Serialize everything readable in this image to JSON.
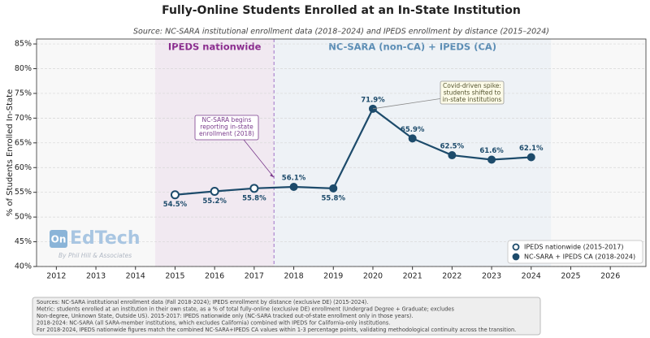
{
  "chart_data": {
    "type": "line",
    "title": "Fully-Online Students Enrolled at an In-State Institution",
    "subtitle": "Source: NC-SARA institutional enrollment data (2018–2024) and IPEDS enrollment by distance (2015–2024)",
    "y_label": "% of Students Enrolled In-State",
    "xlim": [
      2011.5,
      2026.9
    ],
    "xticks": [
      2012,
      2013,
      2014,
      2015,
      2016,
      2017,
      2018,
      2019,
      2020,
      2021,
      2022,
      2023,
      2024,
      2025,
      2026
    ],
    "ylim": [
      40,
      86
    ],
    "yticks": [
      {
        "value": 40,
        "label": "40%"
      },
      {
        "value": 45,
        "label": "45%"
      },
      {
        "value": 50,
        "label": "50%"
      },
      {
        "value": 55,
        "label": "55%"
      },
      {
        "value": 60,
        "label": "60%"
      },
      {
        "value": 65,
        "label": "65%"
      },
      {
        "value": 70,
        "label": "70%"
      },
      {
        "value": 75,
        "label": "75%"
      },
      {
        "value": 80,
        "label": "80%"
      },
      {
        "value": 85,
        "label": "85%"
      }
    ],
    "grid": true,
    "legend": "lower right",
    "regions": [
      {
        "label": "IPEDS nationwide",
        "start": 2014.5,
        "end": 2017.5,
        "color": "#f1e9f1",
        "text_color": "#8b2d8f"
      },
      {
        "label": "NC-SARA (non-CA) + IPEDS (CA)",
        "start": 2017.5,
        "end": 2024.5,
        "color": "#eef2f6",
        "text_color": "#5b8db5"
      }
    ],
    "series": [
      {
        "name": "IPEDS nationwide (2015-2017)",
        "color": "#1d4b6b",
        "marker": "open",
        "x": [
          2015,
          2016,
          2017
        ],
        "values": [
          54.5,
          55.2,
          55.8
        ],
        "value_labels": [
          "54.5%",
          "55.2%",
          "55.8%"
        ]
      },
      {
        "name": "NC-SARA + IPEDS CA (2018-2024)",
        "color": "#1d4b6b",
        "marker": "filled",
        "x": [
          2018,
          2019,
          2020,
          2021,
          2022,
          2023,
          2024
        ],
        "values": [
          56.1,
          55.8,
          71.9,
          65.9,
          62.5,
          61.6,
          62.1
        ],
        "value_labels": [
          "56.1%",
          "55.8%",
          "71.9%",
          "65.9%",
          "62.5%",
          "61.6%",
          "62.1%"
        ]
      }
    ],
    "annotations": [
      {
        "lines": [
          "NC-SARA begins",
          "reporting in-state",
          "enrollment (2018)"
        ],
        "x": 2017.5,
        "y": 58
      },
      {
        "lines": [
          "Covid-driven spike:",
          "students shifted to",
          "in-state institutions"
        ],
        "x": 2020,
        "y": 71.9
      }
    ],
    "logo": {
      "badge": "On",
      "name": "EdTech",
      "byline": "By Phil Hill & Associates"
    },
    "footer": [
      "Sources: NC-SARA institutional enrollment data (Fall 2018-2024); IPEDS enrollment by distance (exclusive DE) (2015-2024).",
      "Metric: students enrolled at an institution in their own state, as a % of total fully-online (exclusive DE) enrollment (Undergrad Degree + Graduate; excludes",
      "Non-degree, Unknown State, Outside US).  2015-2017: IPEDS nationwide only (NC-SARA tracked out-of-state enrollment only in those years).",
      "2018-2024: NC-SARA (all SARA-member institutions, which excludes California) combined with IPEDS for California-only institutions.",
      "For 2018-2024, IPEDS nationwide figures match the combined NC-SARA+IPEDS CA values within 1-3 percentage points, validating methodological continuity across the transition."
    ]
  }
}
